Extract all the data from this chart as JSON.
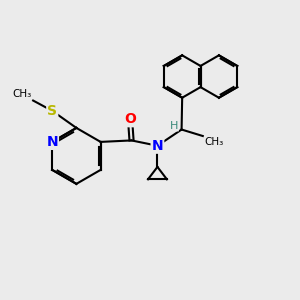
{
  "bg_color": "#ebebeb",
  "bond_color": "#000000",
  "bond_width": 1.5,
  "atom_colors": {
    "N": "#0000ff",
    "O": "#ff0000",
    "S": "#b8b800",
    "H": "#3a8a7a",
    "C": "#000000"
  },
  "font_size": 9,
  "fig_width": 3.0,
  "fig_height": 3.0,
  "dpi": 100
}
